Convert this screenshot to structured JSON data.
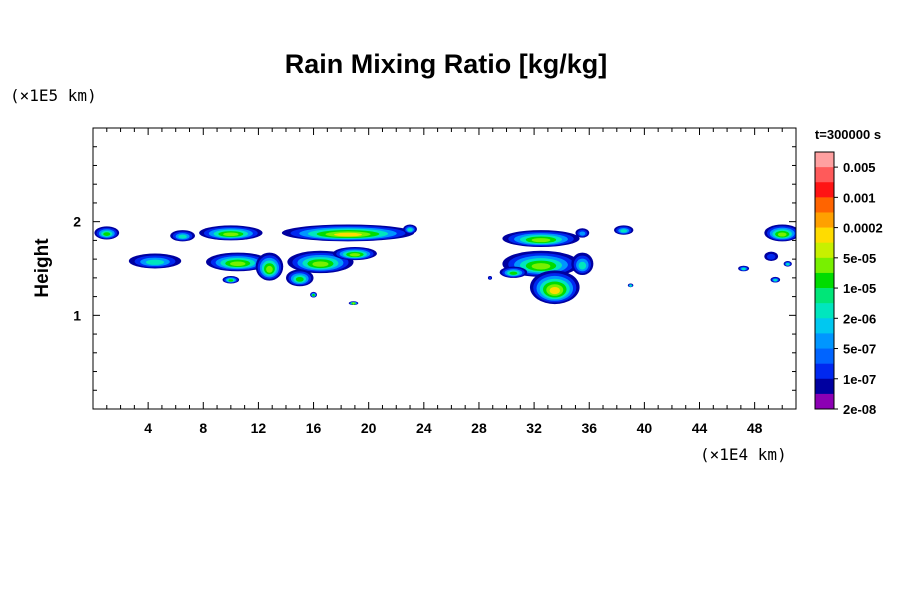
{
  "chart_data": {
    "type": "heatmap",
    "title": "Rain Mixing Ratio [kg/kg]",
    "time_label": "t=300000 s",
    "xlabel": "",
    "ylabel": "Height",
    "x_unit": "(×1E4 km)",
    "y_unit": "(×1E5 km)",
    "xlim": [
      0,
      51
    ],
    "ylim": [
      0,
      3
    ],
    "x_ticks": [
      "4",
      "8",
      "12",
      "16",
      "20",
      "24",
      "28",
      "32",
      "36",
      "40",
      "44",
      "48"
    ],
    "y_ticks": [
      "1",
      "2"
    ],
    "colorbar": {
      "labels": [
        "0.005",
        "0.001",
        "0.0002",
        "5e-05",
        "1e-05",
        "2e-06",
        "5e-07",
        "1e-07",
        "2e-08"
      ],
      "colors": [
        "#ffa0a0",
        "#ff5a5a",
        "#ff1414",
        "#ff6400",
        "#ffa000",
        "#ffdc00",
        "#c8f000",
        "#78f000",
        "#00dc00",
        "#00e678",
        "#00e6be",
        "#00c8f0",
        "#0096ff",
        "#0064ff",
        "#0028f0",
        "#0000a0",
        "#8c00b4"
      ]
    },
    "cells": [
      {
        "x": 1.0,
        "y": 1.88,
        "rx": 0.9,
        "ry": 0.07,
        "level": "1e-05"
      },
      {
        "x": 4.5,
        "y": 1.58,
        "rx": 1.9,
        "ry": 0.08,
        "level": "2e-06"
      },
      {
        "x": 6.5,
        "y": 1.85,
        "rx": 0.9,
        "ry": 0.06,
        "level": "2e-06"
      },
      {
        "x": 10.0,
        "y": 1.88,
        "rx": 2.3,
        "ry": 0.08,
        "level": "5e-05"
      },
      {
        "x": 10.5,
        "y": 1.57,
        "rx": 2.3,
        "ry": 0.1,
        "level": "5e-05"
      },
      {
        "x": 10.0,
        "y": 1.38,
        "rx": 0.6,
        "ry": 0.04,
        "level": "1e-05"
      },
      {
        "x": 12.8,
        "y": 1.52,
        "rx": 1.0,
        "ry": 0.15,
        "level": "5e-05"
      },
      {
        "x": 18.5,
        "y": 1.88,
        "rx": 4.8,
        "ry": 0.09,
        "level": "0.0002"
      },
      {
        "x": 16.5,
        "y": 1.57,
        "rx": 2.4,
        "ry": 0.12,
        "level": "5e-05"
      },
      {
        "x": 19.0,
        "y": 1.66,
        "rx": 1.6,
        "ry": 0.07,
        "level": "5e-05"
      },
      {
        "x": 15.0,
        "y": 1.4,
        "rx": 1.0,
        "ry": 0.09,
        "level": "1e-05"
      },
      {
        "x": 16.0,
        "y": 1.22,
        "rx": 0.25,
        "ry": 0.03,
        "level": "1e-05"
      },
      {
        "x": 18.9,
        "y": 1.13,
        "rx": 0.35,
        "ry": 0.02,
        "level": "5e-05"
      },
      {
        "x": 23.0,
        "y": 1.92,
        "rx": 0.5,
        "ry": 0.05,
        "level": "2e-06"
      },
      {
        "x": 32.5,
        "y": 1.82,
        "rx": 2.8,
        "ry": 0.09,
        "level": "5e-05"
      },
      {
        "x": 32.5,
        "y": 1.55,
        "rx": 2.8,
        "ry": 0.14,
        "level": "5e-05"
      },
      {
        "x": 33.5,
        "y": 1.3,
        "rx": 1.8,
        "ry": 0.18,
        "level": "0.0002"
      },
      {
        "x": 30.5,
        "y": 1.46,
        "rx": 1.0,
        "ry": 0.06,
        "level": "1e-05"
      },
      {
        "x": 35.5,
        "y": 1.55,
        "rx": 0.8,
        "ry": 0.12,
        "level": "2e-06"
      },
      {
        "x": 35.5,
        "y": 1.88,
        "rx": 0.5,
        "ry": 0.05,
        "level": "5e-07"
      },
      {
        "x": 38.5,
        "y": 1.91,
        "rx": 0.7,
        "ry": 0.05,
        "level": "2e-06"
      },
      {
        "x": 28.8,
        "y": 1.4,
        "rx": 0.15,
        "ry": 0.02,
        "level": "1e-07"
      },
      {
        "x": 39.0,
        "y": 1.32,
        "rx": 0.2,
        "ry": 0.02,
        "level": "2e-06"
      },
      {
        "x": 50.0,
        "y": 1.88,
        "rx": 1.3,
        "ry": 0.09,
        "level": "5e-05"
      },
      {
        "x": 49.2,
        "y": 1.63,
        "rx": 0.5,
        "ry": 0.05,
        "level": "1e-07"
      },
      {
        "x": 50.4,
        "y": 1.55,
        "rx": 0.3,
        "ry": 0.03,
        "level": "2e-06"
      },
      {
        "x": 47.2,
        "y": 1.5,
        "rx": 0.4,
        "ry": 0.03,
        "level": "2e-06"
      },
      {
        "x": 49.5,
        "y": 1.38,
        "rx": 0.35,
        "ry": 0.03,
        "level": "2e-06"
      }
    ]
  }
}
